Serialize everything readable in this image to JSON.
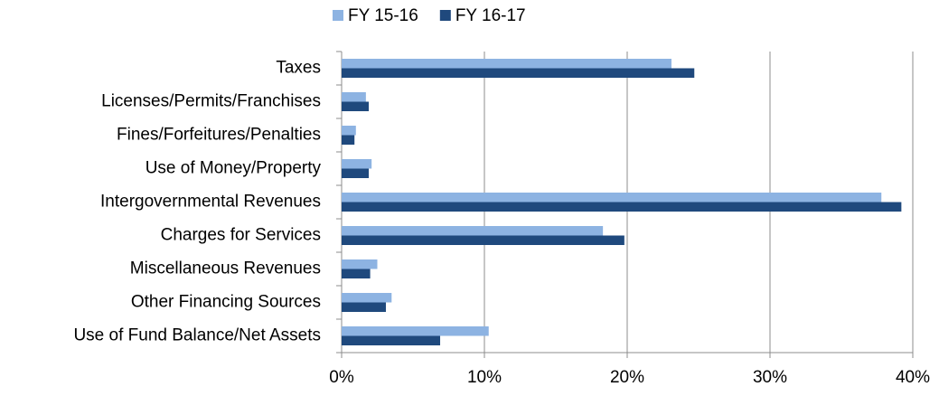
{
  "chart_data": {
    "type": "hbar",
    "categories": [
      "Taxes",
      "Licenses/Permits/Franchises",
      "Fines/Forfeitures/Penalties",
      "Use of Money/Property",
      "Intergovernmental Revenues",
      "Charges for Services",
      "Miscellaneous Revenues",
      "Other Financing Sources",
      "Use of Fund Balance/Net Assets"
    ],
    "series": [
      {
        "name": "FY 15-16",
        "color": "#8db3e2",
        "values": [
          23.1,
          1.7,
          1.0,
          2.1,
          37.8,
          18.3,
          2.5,
          3.5,
          10.3
        ]
      },
      {
        "name": "FY 16-17",
        "color": "#1f497d",
        "values": [
          24.7,
          1.9,
          0.9,
          1.9,
          39.2,
          19.8,
          2.0,
          3.1,
          6.9
        ]
      }
    ],
    "xlim": [
      0,
      40
    ],
    "xticks": [
      {
        "value": 0,
        "label": "0%"
      },
      {
        "value": 10,
        "label": "10%"
      },
      {
        "value": 20,
        "label": "20%"
      },
      {
        "value": 30,
        "label": "30%"
      },
      {
        "value": 40,
        "label": "40%"
      }
    ],
    "grid": true,
    "legend": "top"
  }
}
